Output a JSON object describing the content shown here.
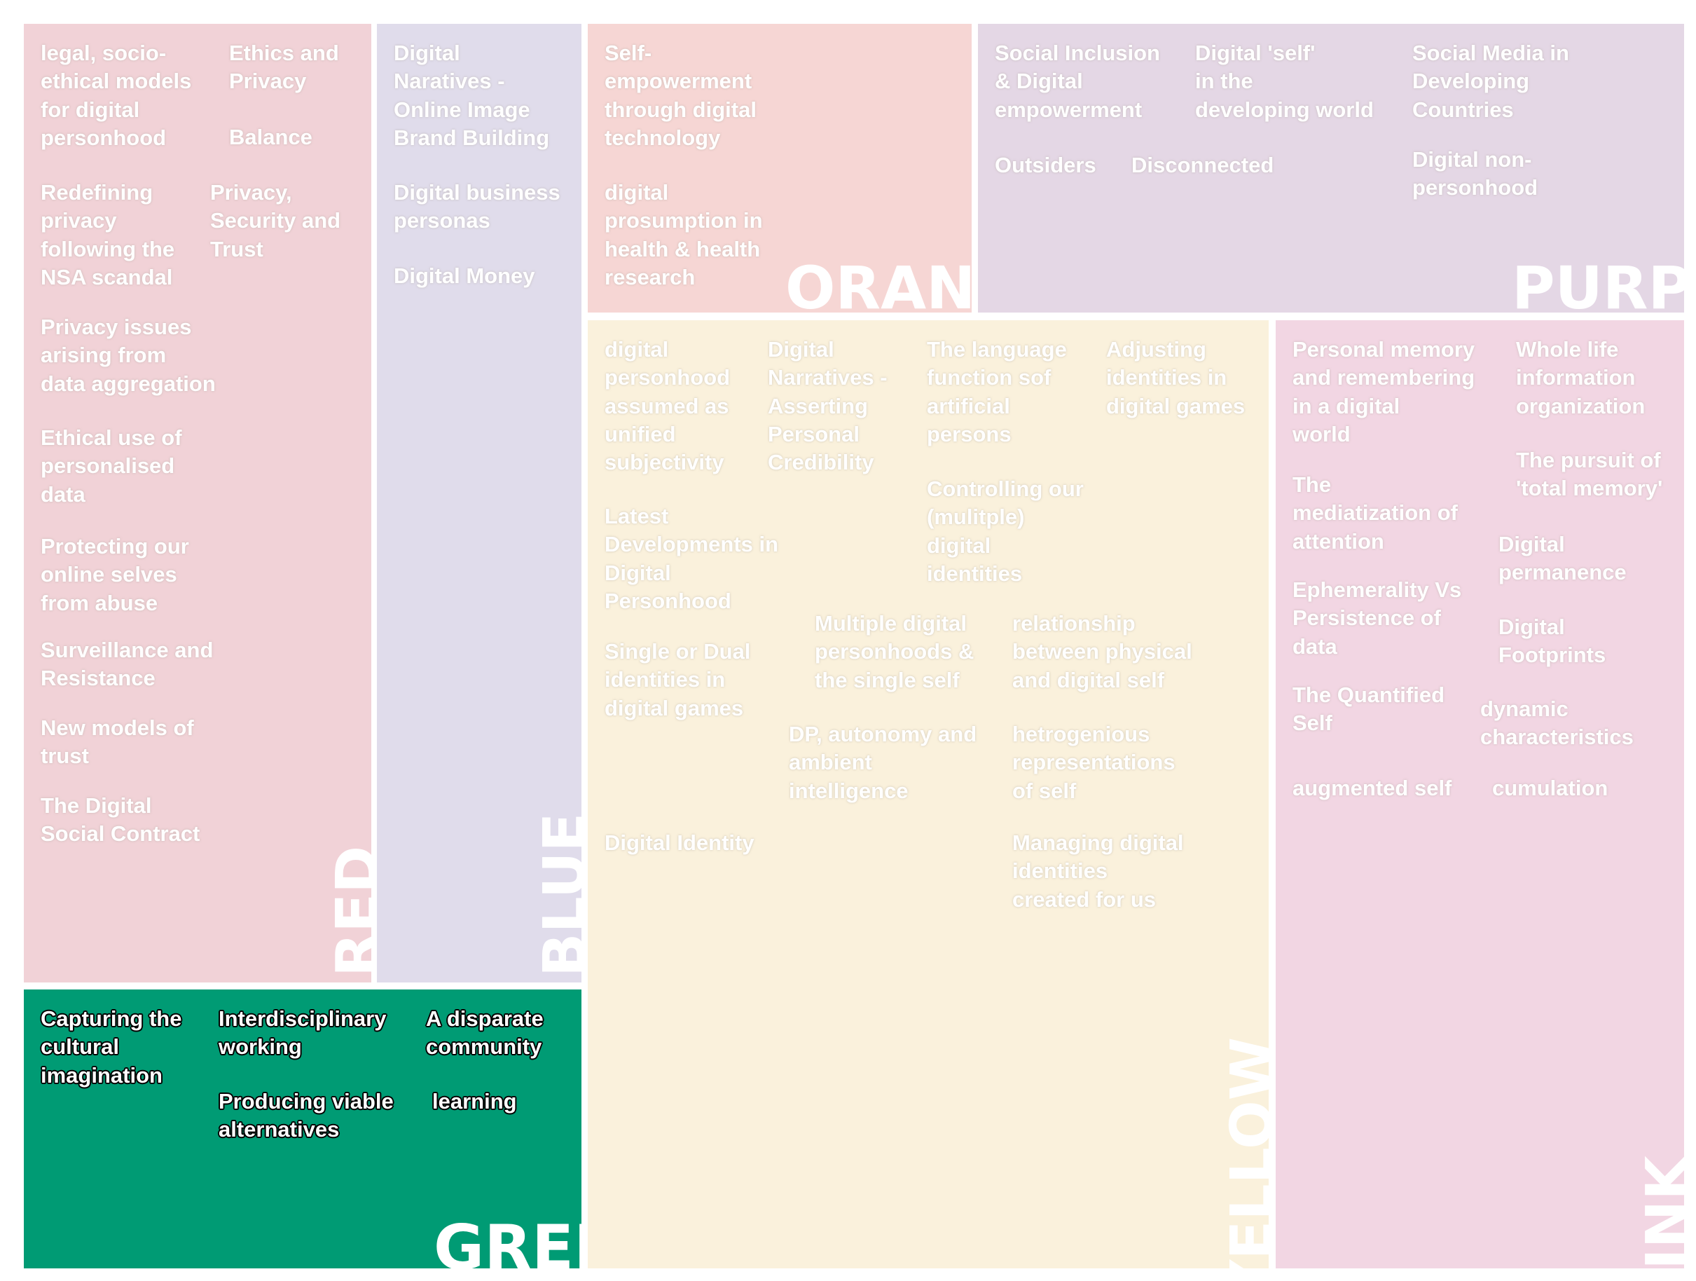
{
  "colors": {
    "red": "#f1d2d7",
    "blue": "#e0dceb",
    "orange": "#f6d6d4",
    "purple": "#e4d7e5",
    "yellow": "#faf1dc",
    "pink": "#f2d6e3",
    "green": "#009b74",
    "label": "#ffffff"
  },
  "panels": {
    "red": {
      "label": "RED",
      "topics": [
        "legal, socio-\nethical models\nfor digital\npersonhood",
        "Ethics and\nPrivacy",
        "Balance",
        "Redefining\nprivacy\nfollowing the\nNSA scandal",
        "Privacy,\nSecurity and\nTrust",
        "Privacy issues\narising from\ndata aggregation",
        "Ethical use of\npersonalised\ndata",
        "Protecting our\nonline selves\nfrom abuse",
        "Surveillance and\nResistance",
        "New models of\ntrust",
        "The Digital\nSocial Contract"
      ]
    },
    "blue": {
      "label": "BLUE",
      "topics": [
        "Digital\nNaratives -\nOnline Image\nBrand Building",
        "Digital business\npersonas",
        "Digital Money"
      ]
    },
    "orange": {
      "label": "ORANGE",
      "topics": [
        "Self-\nempowerment\nthrough digital\ntechnology",
        "digital\nprosumption in\nhealth & health\nresearch"
      ]
    },
    "purple": {
      "label": "PURPLE",
      "topics": [
        "Social Inclusion\n& Digital\nempowerment",
        "Digital 'self'\nin the\ndeveloping world",
        "Social Media in\nDeveloping\nCountries",
        "Outsiders",
        "Disconnected",
        "Digital non-\npersonhood"
      ]
    },
    "yellow": {
      "label": "YELLOW",
      "topics": [
        "digital\npersonhood\nassumed as\nunified\nsubjectivity",
        "Digital\nNarratives -\nAsserting\nPersonal\nCredibility",
        "The language\nfunction sof\nartificial\npersons",
        "Adjusting\nidentities in\ndigital games",
        "Controlling our\n(mulitple)\ndigital\nidentities",
        "Latest\nDevelopments in\nDigital\nPersonhood",
        "Multiple digital\npersonhoods &\nthe single self",
        "relationship\nbetween physical\nand digital self",
        "Single or Dual\nidentities in\ndigital games",
        "DP, autonomy and\nambient\nintelligence",
        "hetrogenious\nrepresentations\nof self",
        "Digital Identity",
        "Managing digital\nidentities\ncreated for us"
      ]
    },
    "pink": {
      "label": "PINK",
      "topics": [
        "Personal memory\nand remembering\nin a digital\nworld",
        "Whole life\ninformation\norganization",
        "The pursuit of\n'total memory'",
        "The\nmediatization of\nattention",
        "Digital\npermanence",
        "Ephemerality Vs\nPersistence of\ndata",
        "Digital\nFootprints",
        "The Quantified\nSelf",
        "dynamic\ncharacteristics",
        "augmented self",
        "cumulation"
      ]
    },
    "green": {
      "label": "GREEN",
      "topics": [
        "Capturing the\ncultural\nimagination",
        "Interdisciplinary\nworking",
        "A disparate\ncommunity",
        "Producing viable\nalternatives",
        "learning"
      ]
    }
  }
}
